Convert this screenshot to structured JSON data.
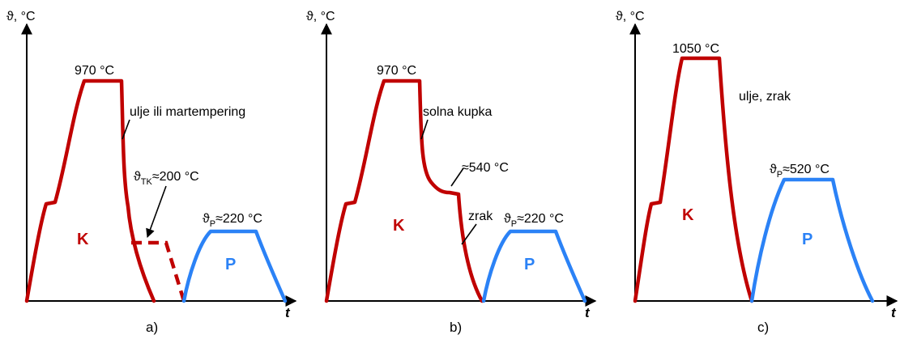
{
  "axes": {
    "y_label": "ϑ, °C",
    "x_label": "t"
  },
  "panels": [
    {
      "caption": "a)",
      "peak_label": "970 °C",
      "medium_label": "ulje ili martempering",
      "tk_prefix": "ϑ",
      "tk_sub": "TK",
      "tk_suffix": "≈200 °C",
      "temper_prefix": "ϑ",
      "temper_sub": "P",
      "temper_suffix": "≈220 °C",
      "K_label": "K",
      "P_label": "P"
    },
    {
      "caption": "b)",
      "peak_label": "970 °C",
      "medium_label": "solna kupka",
      "step_label": "≈540 °C",
      "air_label": "zrak",
      "temper_prefix": "ϑ",
      "temper_sub": "P",
      "temper_suffix": "≈220 °C",
      "K_label": "K",
      "P_label": "P"
    },
    {
      "caption": "c)",
      "peak_label": "1050 °C",
      "medium_label": "ulje, zrak",
      "temper_prefix": "ϑ",
      "temper_sub": "P",
      "temper_suffix": "≈520 °C",
      "K_label": "K",
      "P_label": "P"
    }
  ]
}
